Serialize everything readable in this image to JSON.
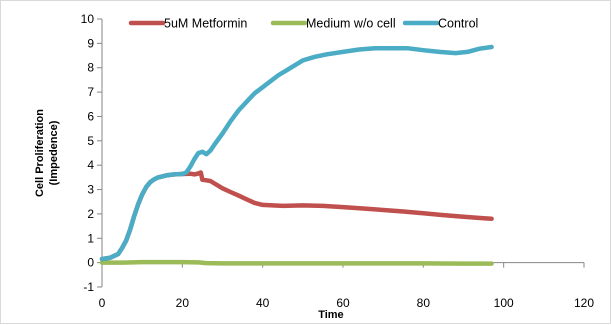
{
  "chart_data": {
    "type": "line",
    "title": "",
    "xlabel": "Time",
    "ylabel_lines": [
      "Cell Proliferation",
      "(Impedence)"
    ],
    "xlim": [
      0,
      120
    ],
    "ylim": [
      -1,
      10
    ],
    "xticks": [
      0,
      20,
      40,
      60,
      80,
      100,
      120
    ],
    "yticks": [
      -1,
      0,
      1,
      2,
      3,
      4,
      5,
      6,
      7,
      8,
      9,
      10
    ],
    "grid": false,
    "legend_position": "top",
    "series": [
      {
        "name": "5uM Metformin",
        "color": "#c0504d",
        "points": [
          [
            0,
            0.15
          ],
          [
            2,
            0.2
          ],
          [
            4,
            0.35
          ],
          [
            5,
            0.6
          ],
          [
            6,
            0.9
          ],
          [
            7,
            1.35
          ],
          [
            8,
            1.9
          ],
          [
            9,
            2.4
          ],
          [
            10,
            2.8
          ],
          [
            11,
            3.1
          ],
          [
            12,
            3.3
          ],
          [
            13,
            3.42
          ],
          [
            14,
            3.5
          ],
          [
            16,
            3.58
          ],
          [
            18,
            3.62
          ],
          [
            20,
            3.64
          ],
          [
            22,
            3.65
          ],
          [
            23,
            3.62
          ],
          [
            24,
            3.66
          ],
          [
            24.6,
            3.7
          ],
          [
            25,
            3.4
          ],
          [
            26,
            3.38
          ],
          [
            27,
            3.35
          ],
          [
            28,
            3.25
          ],
          [
            30,
            3.05
          ],
          [
            32,
            2.9
          ],
          [
            34,
            2.75
          ],
          [
            36,
            2.6
          ],
          [
            38,
            2.45
          ],
          [
            40,
            2.37
          ],
          [
            45,
            2.33
          ],
          [
            50,
            2.35
          ],
          [
            55,
            2.33
          ],
          [
            60,
            2.28
          ],
          [
            65,
            2.22
          ],
          [
            70,
            2.16
          ],
          [
            75,
            2.1
          ],
          [
            80,
            2.03
          ],
          [
            85,
            1.95
          ],
          [
            90,
            1.88
          ],
          [
            95,
            1.82
          ],
          [
            97,
            1.8
          ]
        ]
      },
      {
        "name": "Medium w/o cell",
        "color": "#9bbb59",
        "points": [
          [
            0,
            0.0
          ],
          [
            5,
            0.0
          ],
          [
            10,
            0.02
          ],
          [
            15,
            0.02
          ],
          [
            20,
            0.02
          ],
          [
            24,
            0.01
          ],
          [
            26,
            -0.02
          ],
          [
            30,
            -0.03
          ],
          [
            40,
            -0.03
          ],
          [
            50,
            -0.03
          ],
          [
            60,
            -0.03
          ],
          [
            70,
            -0.03
          ],
          [
            80,
            -0.03
          ],
          [
            90,
            -0.04
          ],
          [
            97,
            -0.04
          ]
        ]
      },
      {
        "name": "Control",
        "color": "#4bacc6",
        "points": [
          [
            0,
            0.15
          ],
          [
            2,
            0.2
          ],
          [
            4,
            0.35
          ],
          [
            5,
            0.6
          ],
          [
            6,
            0.9
          ],
          [
            7,
            1.35
          ],
          [
            8,
            1.9
          ],
          [
            9,
            2.4
          ],
          [
            10,
            2.8
          ],
          [
            11,
            3.1
          ],
          [
            12,
            3.3
          ],
          [
            13,
            3.42
          ],
          [
            14,
            3.5
          ],
          [
            16,
            3.58
          ],
          [
            18,
            3.62
          ],
          [
            20,
            3.64
          ],
          [
            21,
            3.7
          ],
          [
            22,
            3.95
          ],
          [
            23,
            4.25
          ],
          [
            24,
            4.5
          ],
          [
            25,
            4.55
          ],
          [
            26,
            4.45
          ],
          [
            27,
            4.6
          ],
          [
            28,
            4.85
          ],
          [
            30,
            5.3
          ],
          [
            32,
            5.8
          ],
          [
            34,
            6.25
          ],
          [
            36,
            6.6
          ],
          [
            38,
            6.95
          ],
          [
            40,
            7.2
          ],
          [
            42,
            7.45
          ],
          [
            44,
            7.7
          ],
          [
            46,
            7.9
          ],
          [
            48,
            8.1
          ],
          [
            50,
            8.3
          ],
          [
            53,
            8.45
          ],
          [
            56,
            8.55
          ],
          [
            60,
            8.65
          ],
          [
            64,
            8.75
          ],
          [
            68,
            8.8
          ],
          [
            72,
            8.8
          ],
          [
            76,
            8.8
          ],
          [
            80,
            8.72
          ],
          [
            84,
            8.65
          ],
          [
            88,
            8.6
          ],
          [
            91,
            8.65
          ],
          [
            94,
            8.78
          ],
          [
            97,
            8.85
          ]
        ]
      }
    ]
  }
}
